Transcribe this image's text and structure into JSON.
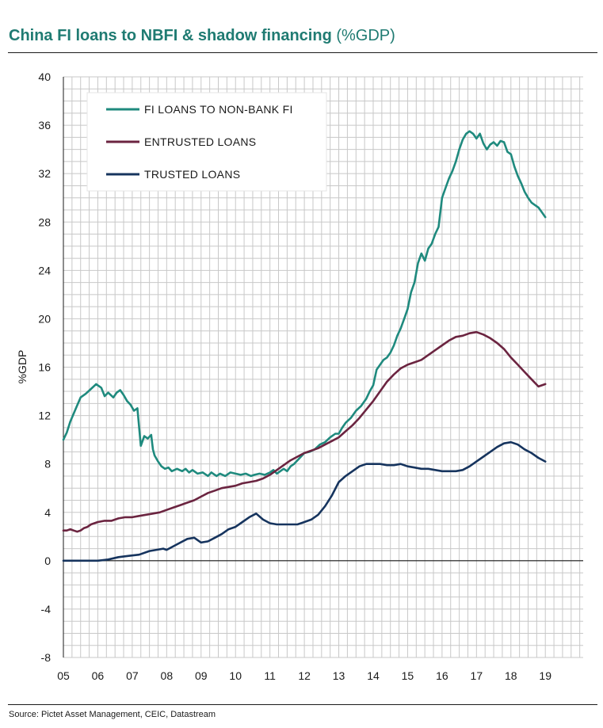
{
  "header": {
    "title": "China FI loans to NBFI & shadow financing",
    "title_unit": "(%GDP)"
  },
  "footer": {
    "source": "Source: Pictet Asset Management, CEIC, Datastream"
  },
  "colors": {
    "fi_loans": "#1f8a7e",
    "entrusted": "#6b2440",
    "trusted": "#16345e",
    "grid": "#c8c8c8"
  },
  "chart_data": {
    "type": "line",
    "title": "China FI loans to NBFI & shadow financing (%GDP)",
    "ylabel": "%GDP",
    "xlabel": "",
    "ylim": [
      -8,
      40
    ],
    "xlim": [
      2005,
      2020.1
    ],
    "yticks": [
      -8,
      -4,
      0,
      4,
      8,
      12,
      16,
      20,
      24,
      28,
      32,
      36,
      40
    ],
    "xticks": [
      {
        "x": 2005,
        "label": "05"
      },
      {
        "x": 2006,
        "label": "06"
      },
      {
        "x": 2007,
        "label": "07"
      },
      {
        "x": 2008,
        "label": "08"
      },
      {
        "x": 2009,
        "label": "09"
      },
      {
        "x": 2010,
        "label": "10"
      },
      {
        "x": 2011,
        "label": "11"
      },
      {
        "x": 2012,
        "label": "12"
      },
      {
        "x": 2013,
        "label": "13"
      },
      {
        "x": 2014,
        "label": "14"
      },
      {
        "x": 2015,
        "label": "15"
      },
      {
        "x": 2016,
        "label": "16"
      },
      {
        "x": 2017,
        "label": "17"
      },
      {
        "x": 2018,
        "label": "18"
      },
      {
        "x": 2019,
        "label": "19"
      }
    ],
    "grid": true,
    "legend_position": "top-left",
    "series": [
      {
        "name": "FI LOANS TO NON-BANK FI",
        "color_key": "fi_loans",
        "x": [
          2005.0,
          2005.1,
          2005.2,
          2005.35,
          2005.5,
          2005.65,
          2005.8,
          2005.95,
          2006.1,
          2006.2,
          2006.3,
          2006.45,
          2006.55,
          2006.65,
          2006.75,
          2006.85,
          2006.95,
          2007.05,
          2007.15,
          2007.25,
          2007.35,
          2007.45,
          2007.55,
          2007.6,
          2007.65,
          2007.75,
          2007.85,
          2007.95,
          2008.05,
          2008.15,
          2008.3,
          2008.45,
          2008.55,
          2008.65,
          2008.75,
          2008.9,
          2009.05,
          2009.2,
          2009.3,
          2009.45,
          2009.55,
          2009.7,
          2009.85,
          2010.0,
          2010.15,
          2010.3,
          2010.45,
          2010.55,
          2010.7,
          2010.85,
          2011.0,
          2011.1,
          2011.2,
          2011.3,
          2011.4,
          2011.5,
          2011.6,
          2011.7,
          2011.8,
          2011.9,
          2012.0,
          2012.15,
          2012.3,
          2012.45,
          2012.6,
          2012.75,
          2012.9,
          2013.0,
          2013.1,
          2013.2,
          2013.35,
          2013.5,
          2013.65,
          2013.8,
          2013.9,
          2014.0,
          2014.1,
          2014.2,
          2014.3,
          2014.4,
          2014.5,
          2014.6,
          2014.7,
          2014.8,
          2014.9,
          2015.0,
          2015.1,
          2015.2,
          2015.3,
          2015.4,
          2015.5,
          2015.6,
          2015.7,
          2015.8,
          2015.9,
          2016.0,
          2016.1,
          2016.2,
          2016.3,
          2016.4,
          2016.5,
          2016.6,
          2016.7,
          2016.8,
          2016.9,
          2017.0,
          2017.1,
          2017.2,
          2017.3,
          2017.4,
          2017.5,
          2017.6,
          2017.7,
          2017.8,
          2017.9,
          2018.0,
          2018.1,
          2018.2,
          2018.3,
          2018.4,
          2018.5,
          2018.6,
          2018.7,
          2018.8,
          2018.9,
          2019.0
        ],
        "y": [
          10.0,
          10.6,
          11.5,
          12.5,
          13.5,
          13.8,
          14.2,
          14.6,
          14.3,
          13.6,
          13.9,
          13.5,
          13.9,
          14.1,
          13.7,
          13.2,
          12.9,
          12.4,
          12.6,
          9.5,
          10.3,
          10.1,
          10.4,
          9.2,
          8.7,
          8.2,
          7.8,
          7.6,
          7.7,
          7.4,
          7.6,
          7.4,
          7.6,
          7.3,
          7.5,
          7.2,
          7.3,
          7.0,
          7.3,
          7.0,
          7.2,
          7.0,
          7.3,
          7.2,
          7.1,
          7.2,
          7.0,
          7.1,
          7.2,
          7.1,
          7.3,
          7.5,
          7.2,
          7.4,
          7.6,
          7.4,
          7.8,
          8.0,
          8.3,
          8.6,
          8.9,
          9.0,
          9.2,
          9.6,
          9.8,
          10.2,
          10.5,
          10.5,
          11.0,
          11.4,
          11.8,
          12.4,
          12.8,
          13.4,
          14.0,
          14.5,
          15.8,
          16.2,
          16.6,
          16.8,
          17.2,
          17.8,
          18.6,
          19.2,
          20.0,
          20.8,
          22.2,
          23.0,
          24.6,
          25.4,
          24.8,
          25.8,
          26.2,
          27.0,
          27.6,
          30.0,
          30.8,
          31.6,
          32.2,
          33.0,
          34.0,
          34.8,
          35.3,
          35.5,
          35.3,
          34.9,
          35.3,
          34.5,
          34.0,
          34.4,
          34.6,
          34.3,
          34.7,
          34.6,
          33.8,
          33.6,
          32.6,
          31.8,
          31.2,
          30.5,
          30.0,
          29.6,
          29.4,
          29.2,
          28.8,
          28.4
        ]
      },
      {
        "name": "ENTRUSTED LOANS",
        "color_key": "entrusted",
        "x": [
          2005.0,
          2005.1,
          2005.2,
          2005.3,
          2005.4,
          2005.5,
          2005.6,
          2005.7,
          2005.8,
          2005.9,
          2006.0,
          2006.2,
          2006.4,
          2006.6,
          2006.8,
          2007.0,
          2007.2,
          2007.4,
          2007.6,
          2007.8,
          2008.0,
          2008.2,
          2008.4,
          2008.6,
          2008.8,
          2009.0,
          2009.2,
          2009.4,
          2009.6,
          2009.8,
          2010.0,
          2010.2,
          2010.4,
          2010.6,
          2010.8,
          2011.0,
          2011.2,
          2011.4,
          2011.6,
          2011.8,
          2012.0,
          2012.2,
          2012.4,
          2012.6,
          2012.8,
          2013.0,
          2013.2,
          2013.4,
          2013.6,
          2013.8,
          2014.0,
          2014.2,
          2014.4,
          2014.6,
          2014.8,
          2015.0,
          2015.2,
          2015.4,
          2015.6,
          2015.8,
          2016.0,
          2016.2,
          2016.4,
          2016.6,
          2016.8,
          2017.0,
          2017.2,
          2017.4,
          2017.6,
          2017.8,
          2018.0,
          2018.2,
          2018.4,
          2018.6,
          2018.8,
          2019.0
        ],
        "y": [
          2.5,
          2.5,
          2.6,
          2.5,
          2.4,
          2.5,
          2.7,
          2.8,
          3.0,
          3.1,
          3.2,
          3.3,
          3.3,
          3.5,
          3.6,
          3.6,
          3.7,
          3.8,
          3.9,
          4.0,
          4.2,
          4.4,
          4.6,
          4.8,
          5.0,
          5.3,
          5.6,
          5.8,
          6.0,
          6.1,
          6.2,
          6.4,
          6.5,
          6.6,
          6.8,
          7.1,
          7.5,
          7.9,
          8.3,
          8.6,
          8.9,
          9.1,
          9.3,
          9.6,
          9.9,
          10.2,
          10.7,
          11.2,
          11.8,
          12.5,
          13.2,
          14.0,
          14.8,
          15.4,
          15.9,
          16.2,
          16.4,
          16.6,
          17.0,
          17.4,
          17.8,
          18.2,
          18.5,
          18.6,
          18.8,
          18.9,
          18.7,
          18.4,
          18.0,
          17.5,
          16.8,
          16.2,
          15.6,
          15.0,
          14.4,
          14.6
        ]
      },
      {
        "name": "TRUSTED LOANS",
        "color_key": "trusted",
        "x": [
          2005.0,
          2005.5,
          2006.0,
          2006.3,
          2006.6,
          2006.9,
          2007.2,
          2007.5,
          2007.7,
          2007.9,
          2008.0,
          2008.2,
          2008.4,
          2008.6,
          2008.8,
          2009.0,
          2009.2,
          2009.4,
          2009.6,
          2009.8,
          2010.0,
          2010.2,
          2010.4,
          2010.6,
          2010.8,
          2011.0,
          2011.2,
          2011.4,
          2011.6,
          2011.8,
          2012.0,
          2012.2,
          2012.4,
          2012.6,
          2012.8,
          2013.0,
          2013.2,
          2013.4,
          2013.6,
          2013.8,
          2014.0,
          2014.2,
          2014.4,
          2014.6,
          2014.8,
          2015.0,
          2015.2,
          2015.4,
          2015.6,
          2015.8,
          2016.0,
          2016.2,
          2016.4,
          2016.6,
          2016.8,
          2017.0,
          2017.2,
          2017.4,
          2017.6,
          2017.8,
          2018.0,
          2018.2,
          2018.4,
          2018.6,
          2018.8,
          2019.0
        ],
        "y": [
          0.0,
          0.0,
          0.0,
          0.1,
          0.3,
          0.4,
          0.5,
          0.8,
          0.9,
          1.0,
          0.9,
          1.2,
          1.5,
          1.8,
          1.9,
          1.5,
          1.6,
          1.9,
          2.2,
          2.6,
          2.8,
          3.2,
          3.6,
          3.9,
          3.4,
          3.1,
          3.0,
          3.0,
          3.0,
          3.0,
          3.2,
          3.4,
          3.8,
          4.5,
          5.4,
          6.5,
          7.0,
          7.4,
          7.8,
          8.0,
          8.0,
          8.0,
          7.9,
          7.9,
          8.0,
          7.8,
          7.7,
          7.6,
          7.6,
          7.5,
          7.4,
          7.4,
          7.4,
          7.5,
          7.8,
          8.2,
          8.6,
          9.0,
          9.4,
          9.7,
          9.8,
          9.6,
          9.2,
          8.9,
          8.5,
          8.2
        ]
      }
    ]
  }
}
